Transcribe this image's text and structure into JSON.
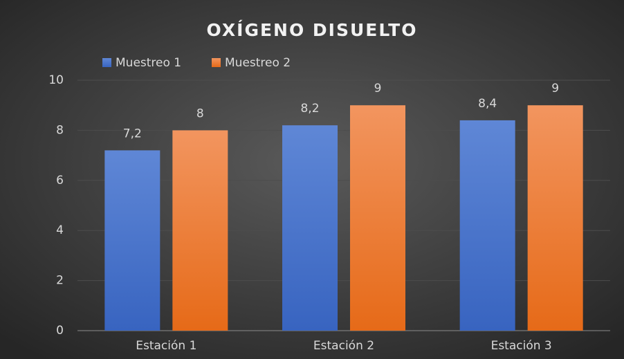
{
  "chart_data": {
    "type": "bar",
    "title": "OXÍGENO DISUELTO",
    "categories": [
      "Estación 1",
      "Estación 2",
      "Estación 3"
    ],
    "series": [
      {
        "name": "Muestreo 1",
        "color": "#4472c4",
        "values": [
          7.2,
          8.2,
          8.4
        ],
        "value_labels": [
          "7,2",
          "8,2",
          "8,4"
        ]
      },
      {
        "name": "Muestreo 2",
        "color": "#ed7d31",
        "values": [
          8,
          9,
          9
        ],
        "value_labels": [
          "8",
          "9",
          "9"
        ]
      }
    ],
    "ylim": [
      0,
      10
    ],
    "yticks": [
      0,
      2,
      4,
      6,
      8,
      10
    ],
    "grid": true,
    "legend": "top-left"
  }
}
